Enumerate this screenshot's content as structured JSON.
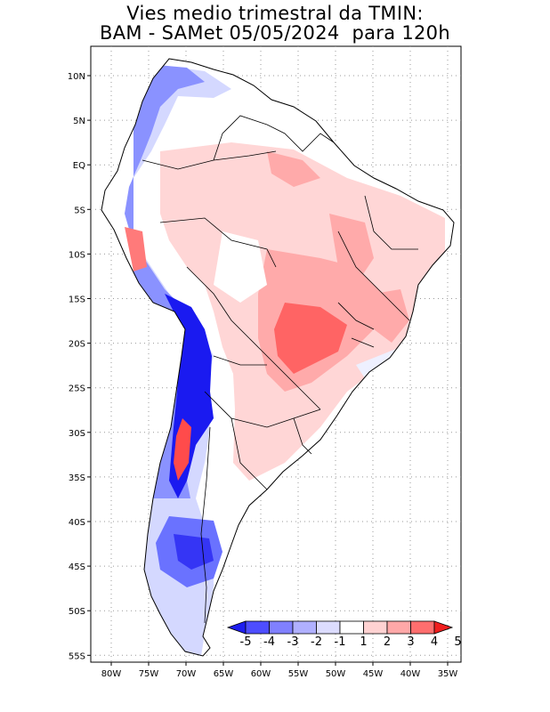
{
  "title": {
    "line1": "Vies medio trimestral da TMIN:",
    "line2": "BAM - SAMet 05/05/2024  para 120h"
  },
  "map": {
    "lat_labels": [
      "10N",
      "5N",
      "EQ",
      "5S",
      "10S",
      "15S",
      "20S",
      "25S",
      "30S",
      "35S",
      "40S",
      "45S",
      "50S",
      "55S"
    ],
    "lon_labels": [
      "80W",
      "75W",
      "70W",
      "65W",
      "60W",
      "55W",
      "50W",
      "45W",
      "40W",
      "35W"
    ]
  },
  "colorbar": {
    "labels": [
      "-5",
      "-4",
      "-3",
      "-2",
      "-1",
      "1",
      "2",
      "3",
      "4",
      "5"
    ],
    "colors": [
      "#1e1ef0",
      "#4d4dff",
      "#8080ff",
      "#b0b0ff",
      "#dcdcff",
      "#ffffff",
      "#ffd2d2",
      "#ffa8a8",
      "#ff6e6e",
      "#f01e1e"
    ]
  },
  "colors": {
    "land_neutral": "#ffffff",
    "warm_light": "#ffd6d6",
    "warm_mid": "#ff9a9a",
    "warm_strong": "#ff5a5a",
    "cold_light": "#d4d8ff",
    "cold_mid": "#8a92ff",
    "cold_strong": "#1a1af0"
  }
}
